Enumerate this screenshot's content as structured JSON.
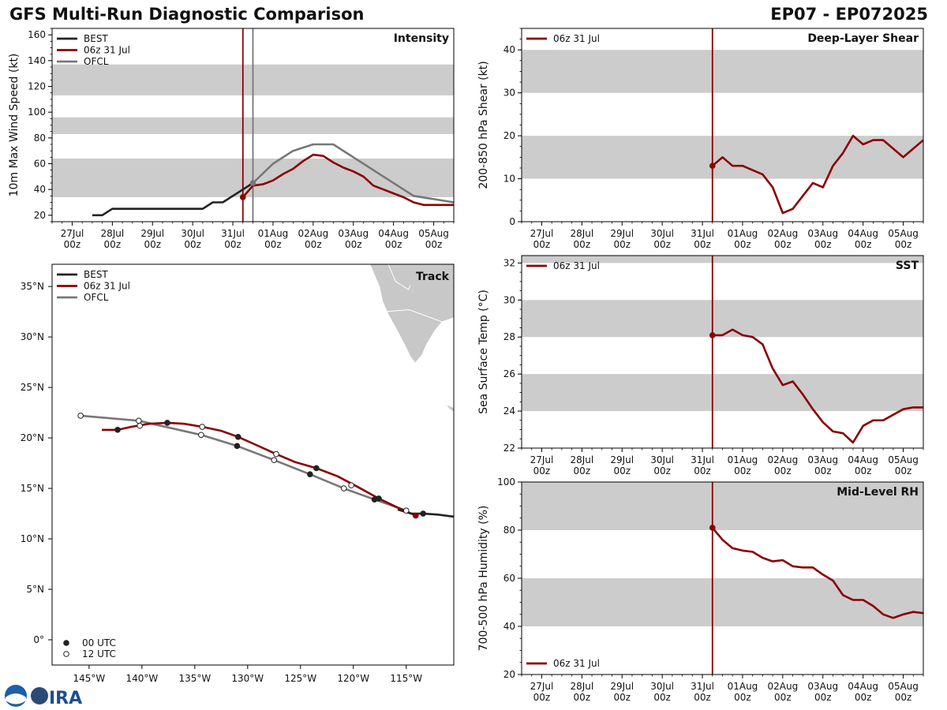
{
  "header": {
    "title": "GFS Multi-Run Diagnostic Comparison",
    "storm_id": "EP07 - EP072025"
  },
  "colors": {
    "best": "#222222",
    "run": "#8b0000",
    "ofcl": "#777777",
    "band": "#cccccc",
    "land": "#c8c8c8"
  },
  "time_axis": {
    "tick_days": [
      "27Jul",
      "28Jul",
      "29Jul",
      "30Jul",
      "31Jul",
      "01Aug",
      "02Aug",
      "03Aug",
      "04Aug",
      "05Aug"
    ],
    "tick_hour": "00z",
    "xlim_days": [
      -0.5,
      9.5
    ],
    "init_day": 4.25
  },
  "chart_data": [
    {
      "id": "intensity",
      "type": "line",
      "title": "Intensity",
      "ylabel": "10m Max Wind Speed (kt)",
      "ylim": [
        15,
        165
      ],
      "yticks": [
        20,
        40,
        60,
        80,
        100,
        120,
        140,
        160
      ],
      "bands": [
        [
          34,
          64
        ],
        [
          83,
          96
        ],
        [
          113,
          137
        ]
      ],
      "vlines": [
        {
          "x": 4.25,
          "series": "run"
        },
        {
          "x": 4.5,
          "series": "ofcl"
        }
      ],
      "legend": [
        "BEST",
        "06z 31 Jul",
        "OFCL"
      ],
      "series": [
        {
          "name": "BEST",
          "key": "best",
          "x": [
            0.5,
            0.75,
            1.0,
            1.25,
            1.5,
            1.75,
            2.0,
            2.25,
            2.5,
            2.75,
            3.0,
            3.25,
            3.5,
            3.75,
            4.0,
            4.25,
            4.5
          ],
          "y": [
            20,
            20,
            25,
            25,
            25,
            25,
            25,
            25,
            25,
            25,
            25,
            25,
            30,
            30,
            35,
            40,
            45
          ]
        },
        {
          "name": "06z 31 Jul",
          "key": "run",
          "marker_x": 4.25,
          "x": [
            4.25,
            4.5,
            4.75,
            5.0,
            5.25,
            5.5,
            5.75,
            6.0,
            6.25,
            6.5,
            6.75,
            7.0,
            7.25,
            7.5,
            7.75,
            8.0,
            8.25,
            8.5,
            8.75,
            9.0,
            9.25,
            9.5
          ],
          "y": [
            34,
            43,
            44,
            47,
            52,
            56,
            62,
            67,
            66,
            61,
            57,
            54,
            50,
            43,
            40,
            37,
            34,
            30,
            28,
            28,
            28,
            28
          ]
        },
        {
          "name": "OFCL",
          "key": "ofcl",
          "marker_x": 4.5,
          "x": [
            4.5,
            5.0,
            5.5,
            6.0,
            6.5,
            7.5,
            8.5,
            9.5
          ],
          "y": [
            45,
            60,
            70,
            75,
            75,
            55,
            35,
            30
          ]
        }
      ]
    },
    {
      "id": "shear",
      "type": "line",
      "title": "Deep-Layer Shear",
      "ylabel": "200-850 hPa Shear (kt)",
      "ylim": [
        0,
        45
      ],
      "yticks": [
        0,
        10,
        20,
        30,
        40
      ],
      "bands": [
        [
          10,
          20
        ],
        [
          30,
          40
        ]
      ],
      "vlines": [
        {
          "x": 4.25,
          "series": "run"
        }
      ],
      "legend": [
        "06z 31 Jul"
      ],
      "series": [
        {
          "name": "06z 31 Jul",
          "key": "run",
          "marker_x": 4.25,
          "x": [
            4.25,
            4.5,
            4.75,
            5.0,
            5.25,
            5.5,
            5.75,
            6.0,
            6.25,
            6.5,
            6.75,
            7.0,
            7.25,
            7.5,
            7.75,
            8.0,
            8.25,
            8.5,
            8.75,
            9.0,
            9.25,
            9.5
          ],
          "y": [
            13,
            15,
            13,
            13,
            12,
            11,
            8,
            2,
            3,
            6,
            9,
            8,
            13,
            16,
            20,
            18,
            19,
            19,
            17,
            15,
            17,
            19
          ]
        }
      ]
    },
    {
      "id": "sst",
      "type": "line",
      "title": "SST",
      "ylabel": "Sea Surface Temp (°C)",
      "ylim": [
        22,
        32.4
      ],
      "yticks": [
        22,
        24,
        26,
        28,
        30,
        32
      ],
      "bands": [
        [
          24,
          26
        ],
        [
          28,
          30
        ],
        [
          32,
          32.4
        ]
      ],
      "vlines": [
        {
          "x": 4.25,
          "series": "run"
        }
      ],
      "legend": [
        "06z 31 Jul"
      ],
      "series": [
        {
          "name": "06z 31 Jul",
          "key": "run",
          "marker_x": 4.25,
          "x": [
            4.25,
            4.5,
            4.75,
            5.0,
            5.25,
            5.5,
            5.75,
            6.0,
            6.25,
            6.5,
            6.75,
            7.0,
            7.25,
            7.5,
            7.75,
            8.0,
            8.25,
            8.5,
            8.75,
            9.0,
            9.25,
            9.5
          ],
          "y": [
            28.1,
            28.1,
            28.4,
            28.1,
            28.0,
            27.6,
            26.3,
            25.4,
            25.6,
            24.9,
            24.1,
            23.4,
            22.9,
            22.8,
            22.3,
            23.2,
            23.5,
            23.5,
            23.8,
            24.1,
            24.2,
            24.2
          ]
        }
      ]
    },
    {
      "id": "rh",
      "type": "line",
      "title": "Mid-Level RH",
      "ylabel": "700-500 hPa Humidity (%)",
      "ylim": [
        20,
        100
      ],
      "yticks": [
        20,
        40,
        60,
        80,
        100
      ],
      "bands": [
        [
          40,
          60
        ],
        [
          80,
          100
        ]
      ],
      "vlines": [
        {
          "x": 4.25,
          "series": "run"
        }
      ],
      "legend": [
        "06z 31 Jul"
      ],
      "series": [
        {
          "name": "06z 31 Jul",
          "key": "run",
          "marker_x": 4.25,
          "x": [
            4.25,
            4.5,
            4.75,
            5.0,
            5.25,
            5.5,
            5.75,
            6.0,
            6.25,
            6.5,
            6.75,
            7.0,
            7.25,
            7.5,
            7.75,
            8.0,
            8.25,
            8.5,
            8.75,
            9.0,
            9.25,
            9.5
          ],
          "y": [
            81,
            76,
            72.5,
            71.5,
            71,
            68.5,
            67,
            67.5,
            65,
            64.5,
            64.5,
            61.5,
            59,
            53,
            51,
            51,
            48.5,
            45,
            43.5,
            45,
            46,
            45.5
          ]
        }
      ]
    },
    {
      "id": "track",
      "type": "map",
      "title": "Track",
      "xlim": [
        -148.5,
        -110.5
      ],
      "ylim": [
        -2.5,
        37.2
      ],
      "lon_ticks": [
        -145,
        -140,
        -135,
        -130,
        -125,
        -120,
        -115
      ],
      "lon_labels": [
        "145°W",
        "140°W",
        "135°W",
        "130°W",
        "125°W",
        "120°W",
        "115°W"
      ],
      "lat_ticks": [
        0,
        5,
        10,
        15,
        20,
        25,
        30,
        35
      ],
      "lat_labels": [
        "0°",
        "5°N",
        "10°N",
        "15°N",
        "20°N",
        "25°N",
        "30°N",
        "35°N"
      ],
      "legend": [
        "BEST",
        "06z 31 Jul",
        "OFCL"
      ],
      "marker_legend": [
        "00 UTC",
        "12 UTC"
      ],
      "best": {
        "lon": [
          -110.5,
          -112.0,
          -113.4,
          -114.5,
          -115.8
        ],
        "lat": [
          12.2,
          12.4,
          12.5,
          12.5,
          12.9
        ],
        "marker_lon": [
          -113.4
        ],
        "marker_lat": [
          12.5
        ],
        "marker_fill": [
          "00"
        ]
      },
      "run": {
        "lon": [
          -114.1,
          -115.8,
          -117.6,
          -119.5,
          -121.5,
          -123.5,
          -125.5,
          -127.3,
          -129.2,
          -130.9,
          -132.5,
          -134.3,
          -136.0,
          -137.6,
          -139.3,
          -141.0,
          -142.3,
          -143.8
        ],
        "lat": [
          12.3,
          13.1,
          14.0,
          15.1,
          16.2,
          17.0,
          17.6,
          18.4,
          19.3,
          20.1,
          20.7,
          21.1,
          21.4,
          21.5,
          21.4,
          21.1,
          20.8,
          20.8
        ],
        "marker_lon": [
          -114.1,
          -117.6,
          -120.2,
          -123.5,
          -127.3,
          -130.9,
          -134.3,
          -137.6,
          -140.2,
          -142.3
        ],
        "marker_lat": [
          12.3,
          14.0,
          15.3,
          17.0,
          18.4,
          20.1,
          21.1,
          21.5,
          21.2,
          20.8
        ],
        "marker_fill": [
          "run",
          "00",
          "12",
          "00",
          "12",
          "00",
          "12",
          "00",
          "12",
          "00"
        ]
      },
      "ofcl": {
        "lon": [
          -115.0,
          -118.0,
          -120.9,
          -124.1,
          -127.5,
          -131.0,
          -134.4,
          -140.3,
          -145.8
        ],
        "lat": [
          12.8,
          13.9,
          15.0,
          16.4,
          17.8,
          19.2,
          20.3,
          21.7,
          22.2
        ],
        "marker_lon": [
          -115.0,
          -118.0,
          -120.9,
          -124.1,
          -127.5,
          -131.0,
          -134.4,
          -140.3,
          -145.8
        ],
        "marker_lat": [
          12.8,
          13.9,
          15.0,
          16.4,
          17.8,
          19.2,
          20.3,
          21.7,
          22.2
        ],
        "marker_fill": [
          "12",
          "00",
          "12",
          "00",
          "12",
          "00",
          "12",
          "12",
          "12"
        ]
      },
      "land": [
        {
          "lon": [
            -118.4,
            -117.5,
            -117.2,
            -116.7,
            -115.8,
            -115.0,
            -114.6,
            -113.8,
            -112.7,
            -112.0,
            -111.4,
            -110.9,
            -110.5,
            -110.5,
            -118.4
          ],
          "lat": [
            37.2,
            35.0,
            33.5,
            32.3,
            30.6,
            29.0,
            28.1,
            27.0,
            25.6,
            24.6,
            23.6,
            22.9,
            22.6,
            37.2,
            37.2
          ]
        },
        {
          "lon": [
            -110.5,
            -111.6,
            -112.3,
            -113.1,
            -113.5,
            -114.0,
            -114.4,
            -113.7,
            -112.9,
            -112.5,
            -112.3,
            -111.4,
            -110.5,
            -110.5
          ],
          "lat": [
            31.9,
            31.5,
            30.6,
            29.2,
            28.2,
            27.6,
            26.8,
            26.0,
            25.8,
            24.9,
            24.2,
            23.4,
            23.0,
            31.9
          ]
        }
      ],
      "borders": [
        {
          "lon": [
            -117.1,
            -114.7,
            -111.1,
            -110.5
          ],
          "lat": [
            32.5,
            32.7,
            31.3,
            31.3
          ]
        },
        {
          "lon": [
            -114.6,
            -114.8,
            -116.0,
            -116.7
          ],
          "lat": [
            35.1,
            34.7,
            35.5,
            37.2
          ]
        }
      ]
    }
  ]
}
